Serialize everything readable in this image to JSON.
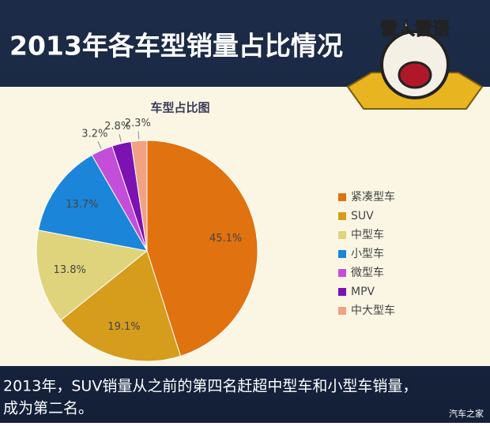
{
  "header": {
    "title": "2013年各车型销量占比情况",
    "logo": "雷人雷语"
  },
  "chart_data": {
    "type": "pie",
    "title": "车型占比图",
    "categories": [
      "紧凑型车",
      "SUV",
      "中型车",
      "小型车",
      "微型车",
      "MPV",
      "中大型车"
    ],
    "values": [
      45.1,
      19.1,
      13.8,
      13.7,
      3.2,
      2.8,
      2.3
    ],
    "value_labels": [
      "45.1%",
      "19.1%",
      "13.8%",
      "13.7%",
      "3.2%",
      "2.8%",
      "2.3%"
    ],
    "colors": [
      "#e0720f",
      "#d69c1c",
      "#dfd47c",
      "#1b85d9",
      "#c24ed9",
      "#7b12b1",
      "#f2a183"
    ],
    "legend": "right"
  },
  "caption": [
    "2013年，SUV销量从之前的第四名赶超中型车和小型车销量，",
    "成为第二名。"
  ],
  "watermark": "汽车之家"
}
